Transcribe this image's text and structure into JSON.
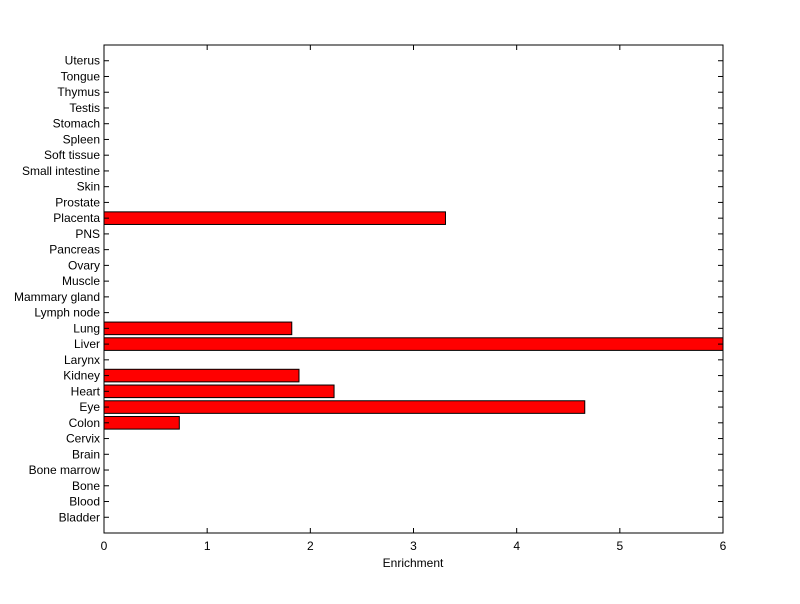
{
  "chart_data": {
    "type": "bar",
    "orientation": "horizontal",
    "title": "",
    "xlabel": "Enrichment",
    "ylabel": "",
    "xlim": [
      0,
      6
    ],
    "xticks": [
      "0",
      "1",
      "2",
      "3",
      "4",
      "5",
      "6"
    ],
    "grid": false,
    "bar_color": "#ff0000",
    "bar_edge_color": "#000000",
    "categories": [
      "Bladder",
      "Blood",
      "Bone",
      "Bone marrow",
      "Brain",
      "Cervix",
      "Colon",
      "Eye",
      "Heart",
      "Kidney",
      "Larynx",
      "Liver",
      "Lung",
      "Lymph node",
      "Mammary gland",
      "Muscle",
      "Ovary",
      "Pancreas",
      "PNS",
      "Placenta",
      "Prostate",
      "Skin",
      "Small intestine",
      "Soft tissue",
      "Spleen",
      "Stomach",
      "Testis",
      "Thymus",
      "Tongue",
      "Uterus"
    ],
    "values": [
      0,
      0,
      0,
      0,
      0,
      0,
      0.73,
      4.66,
      2.23,
      1.89,
      0,
      6.0,
      1.82,
      0,
      0,
      0,
      0,
      0,
      0,
      3.31,
      0,
      0,
      0,
      0,
      0,
      0,
      0,
      0,
      0,
      0
    ]
  }
}
